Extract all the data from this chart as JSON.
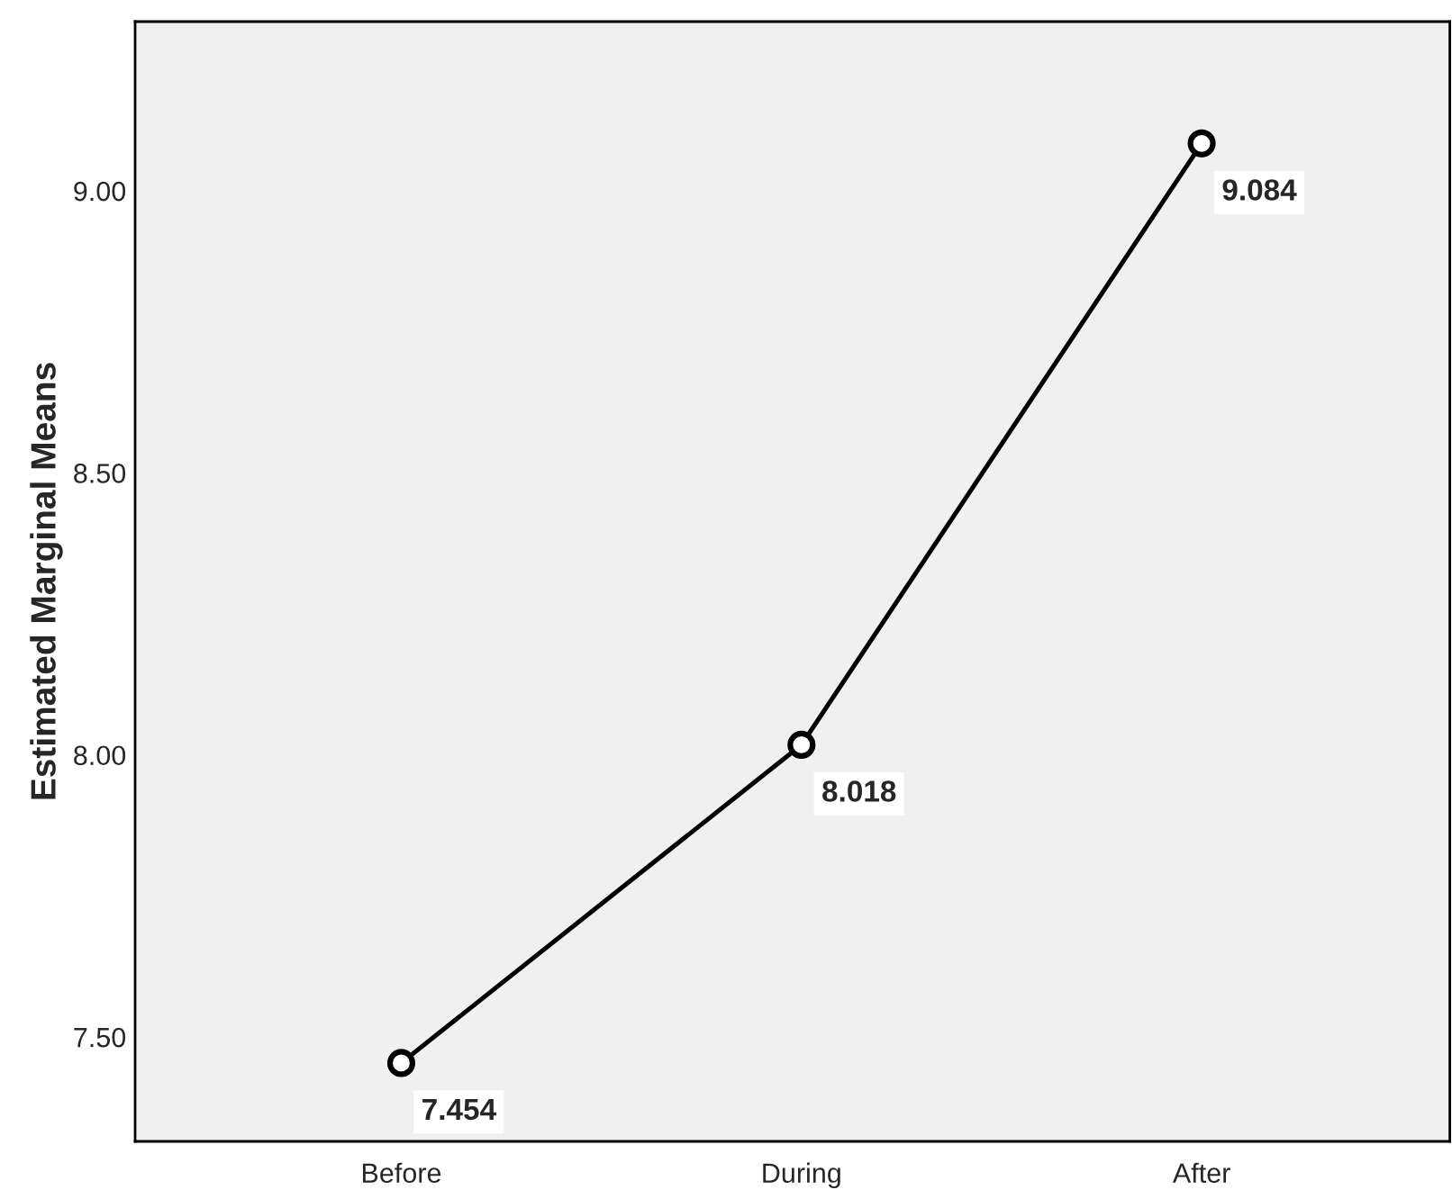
{
  "chart_data": {
    "type": "line",
    "ylabel": "Estimated Marginal Means",
    "categories": [
      "Before",
      "During",
      "After"
    ],
    "values": [
      7.454,
      8.018,
      9.084
    ],
    "color": "#000000",
    "marker": "circle",
    "line_style": "solid",
    "data_labels": true,
    "ylim": [
      7.315,
      9.3
    ],
    "yticks": [
      {
        "value": 7.5,
        "label": "7.50"
      },
      {
        "value": 8.0,
        "label": "8.00"
      },
      {
        "value": 8.5,
        "label": "8.50"
      },
      {
        "value": 9.0,
        "label": "9.00"
      }
    ],
    "grid": false
  }
}
